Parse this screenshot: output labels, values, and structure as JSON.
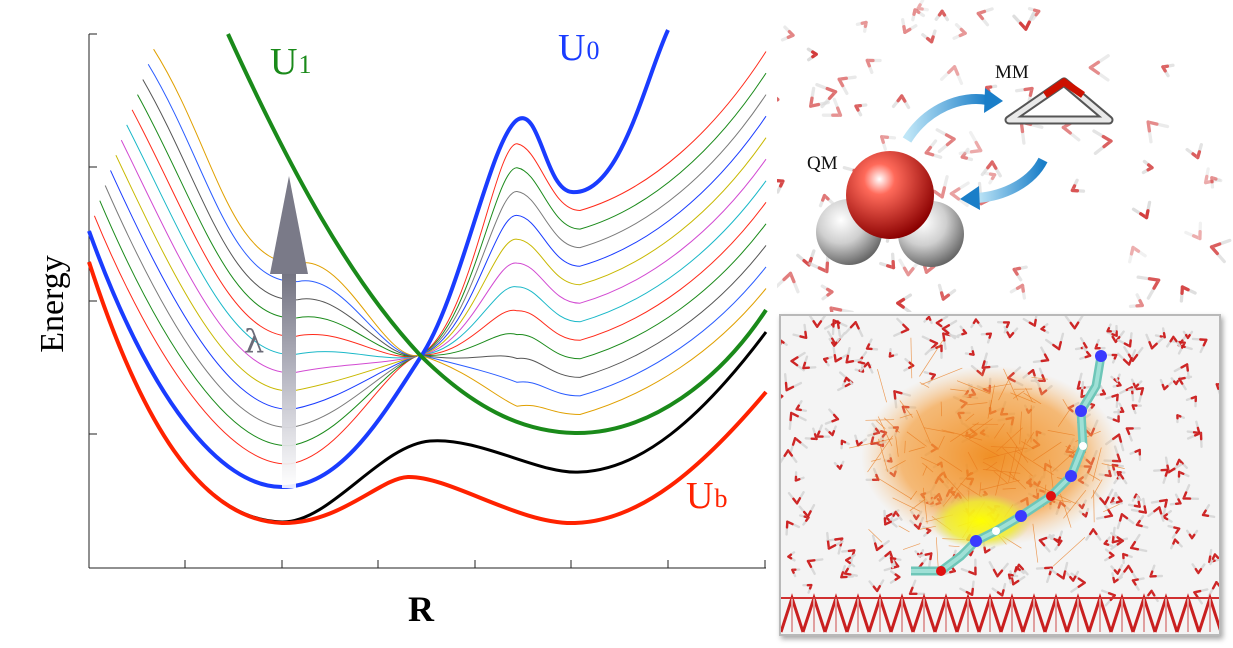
{
  "chart_data": {
    "type": "line",
    "xlabel": "R",
    "ylabel": "Energy",
    "series": [
      {
        "name": "U1",
        "color": "#1a8a1a"
      },
      {
        "name": "U0",
        "color": "#1a3cff"
      },
      {
        "name": "Ub",
        "color": "#ff2200"
      },
      {
        "color": "#000000"
      }
    ],
    "annotations": [
      "λ"
    ],
    "lambda_curves": 12,
    "grid": false
  },
  "labels": {
    "u1": "U",
    "u1_sub": "1",
    "u0": "U",
    "u0_sub": "0",
    "ub": "U",
    "ub_sub": "b",
    "lambda": "λ"
  },
  "inset_top": {
    "mm_label": "MM",
    "qm_label": "QM"
  },
  "colors": {
    "thin_palette": [
      "#ff2a1a",
      "#1a8a1a",
      "#7a7a7a",
      "#1a3cff",
      "#c8b800",
      "#d24ad2",
      "#1ab8c8",
      "#ff2a1a",
      "#1a8a1a",
      "#555555",
      "#2a5cff",
      "#e0a000"
    ]
  }
}
